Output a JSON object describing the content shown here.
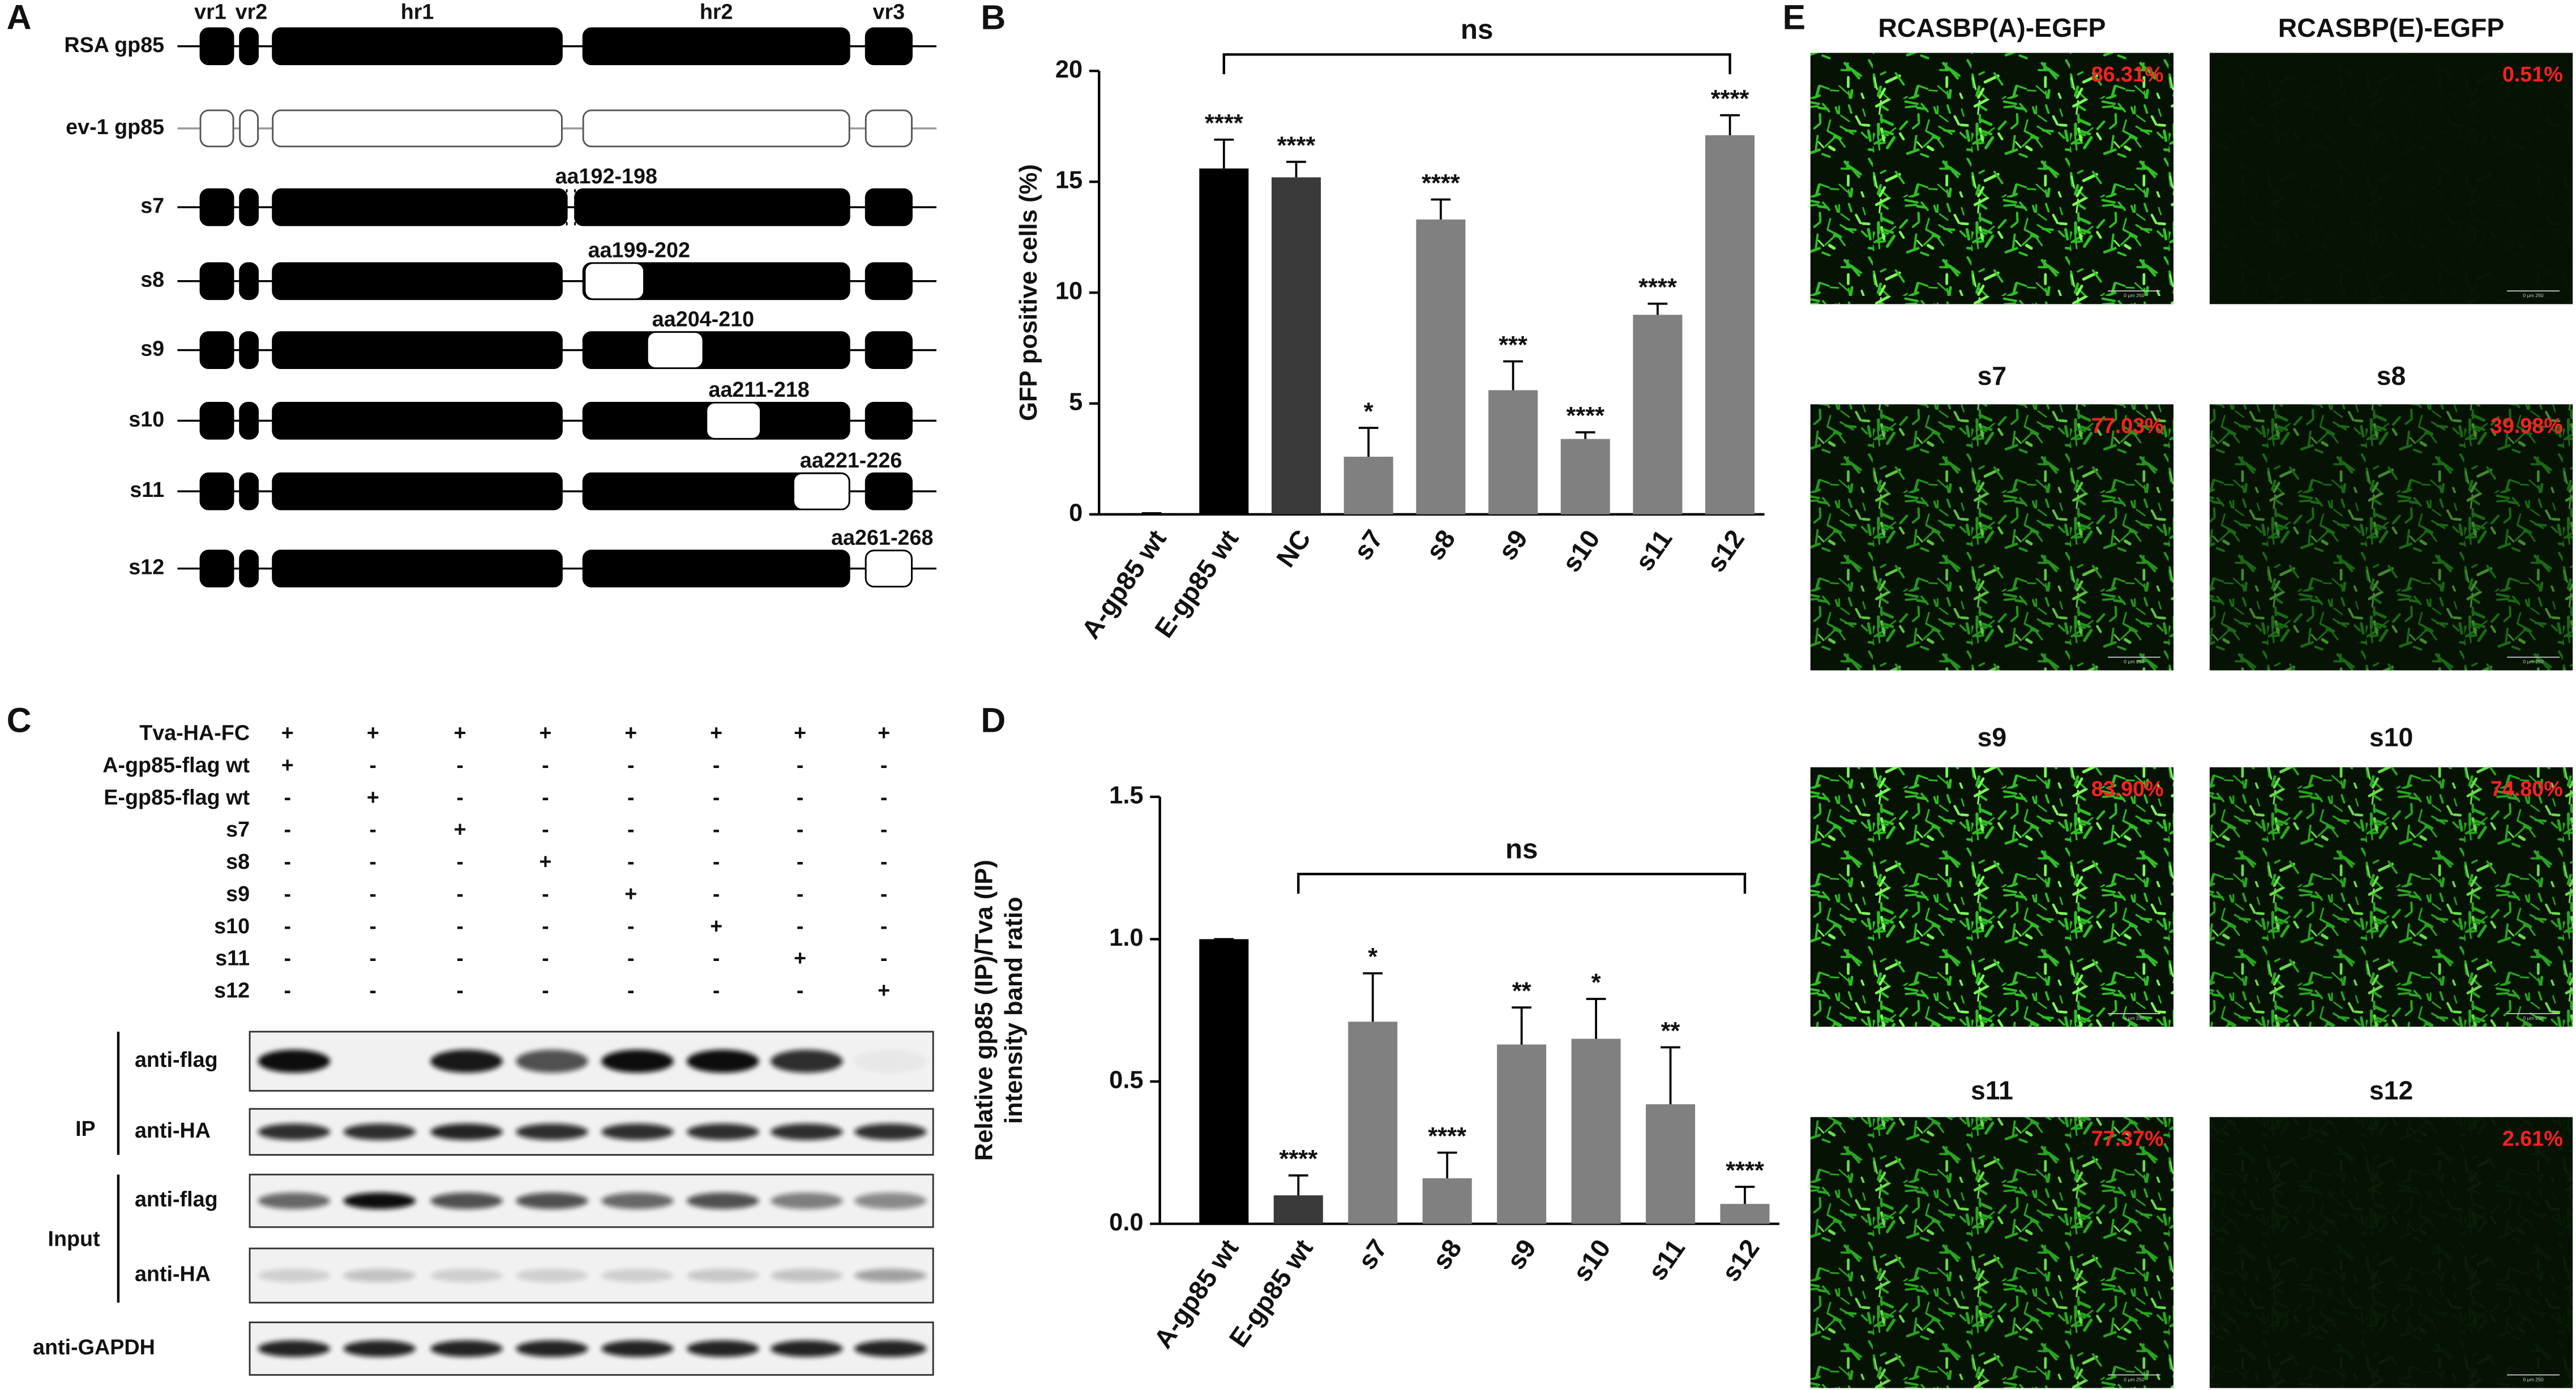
{
  "panel_labels": [
    "A",
    "B",
    "C",
    "D",
    "E"
  ],
  "diagram": {
    "domains": [
      "vr1",
      "vr2",
      "hr1",
      "hr2",
      "vr3"
    ],
    "rows": [
      {
        "label": "RSA gp85"
      },
      {
        "label": "ev-1 gp85"
      },
      {
        "label": "s7",
        "region": "aa192-198"
      },
      {
        "label": "s8",
        "region": "aa199-202"
      },
      {
        "label": "s9",
        "region": "aa204-210"
      },
      {
        "label": "s10",
        "region": "aa211-218"
      },
      {
        "label": "s11",
        "region": "aa221-226"
      },
      {
        "label": "s12",
        "region": "aa261-268"
      }
    ]
  },
  "blot": {
    "conditions": [
      "Tva-HA-FC",
      "A-gp85-flag wt",
      "E-gp85-flag wt",
      "s7",
      "s8",
      "s9",
      "s10",
      "s11",
      "s12"
    ],
    "signs": [
      [
        "+",
        "+",
        "+",
        "+",
        "+",
        "+",
        "+",
        "+"
      ],
      [
        "+",
        "-",
        "-",
        "-",
        "-",
        "-",
        "-",
        "-"
      ],
      [
        "-",
        "+",
        "-",
        "-",
        "-",
        "-",
        "-",
        "-"
      ],
      [
        "-",
        "-",
        "+",
        "-",
        "-",
        "-",
        "-",
        "-"
      ],
      [
        "-",
        "-",
        "-",
        "+",
        "-",
        "-",
        "-",
        "-"
      ],
      [
        "-",
        "-",
        "-",
        "-",
        "+",
        "-",
        "-",
        "-"
      ],
      [
        "-",
        "-",
        "-",
        "-",
        "-",
        "+",
        "-",
        "-"
      ],
      [
        "-",
        "-",
        "-",
        "-",
        "-",
        "-",
        "+",
        "-"
      ],
      [
        "-",
        "-",
        "-",
        "-",
        "-",
        "-",
        "-",
        "+"
      ]
    ],
    "groups": [
      "IP",
      "Input"
    ],
    "blots": [
      "anti-flag",
      "anti-HA",
      "anti-flag",
      "anti-HA",
      "anti-GAPDH"
    ]
  },
  "chart_data": [
    {
      "type": "bar",
      "ylabel": [
        "GFP positive cells (%)"
      ],
      "categories": [
        "A-gp85 wt",
        "E-gp85 wt",
        "NC",
        "s7",
        "s8",
        "s9",
        "s10",
        "s11",
        "s12"
      ],
      "values": [
        0.05,
        15.6,
        15.2,
        2.6,
        13.3,
        5.6,
        3.4,
        9.0,
        17.1
      ],
      "errors": [
        0,
        1.3,
        0.7,
        1.3,
        0.9,
        1.3,
        0.3,
        0.5,
        0.9
      ],
      "annotations": [
        null,
        "****",
        "****",
        "*",
        "****",
        "***",
        "****",
        "****",
        "****"
      ],
      "colors": [
        "#000000",
        "#000000",
        "#3a3a3a",
        "#808080",
        "#808080",
        "#808080",
        "#808080",
        "#808080",
        "#808080"
      ],
      "bracket": {
        "label": "ns",
        "from": "E-gp85 wt",
        "to": "s12"
      },
      "ylim": [
        0,
        20
      ],
      "yticks": [
        0,
        5,
        10,
        15,
        20
      ]
    },
    {
      "type": "bar",
      "ylabel": [
        "Relative gp85 (IP)/Tva (IP)",
        "intensity band ratio"
      ],
      "categories": [
        "A-gp85 wt",
        "E-gp85 wt",
        "s7",
        "s8",
        "s9",
        "s10",
        "s11",
        "s12"
      ],
      "values": [
        1.0,
        0.1,
        0.71,
        0.16,
        0.63,
        0.65,
        0.42,
        0.07
      ],
      "errors": [
        0,
        0.07,
        0.17,
        0.09,
        0.13,
        0.14,
        0.2,
        0.06
      ],
      "annotations": [
        null,
        "****",
        "*",
        "****",
        "**",
        "*",
        "**",
        "****"
      ],
      "colors": [
        "#000000",
        "#3a3a3a",
        "#808080",
        "#808080",
        "#808080",
        "#808080",
        "#808080",
        "#808080"
      ],
      "bracket": {
        "label": "ns",
        "from": "E-gp85 wt",
        "to": "s12"
      },
      "ylim": [
        0,
        1.5
      ],
      "yticks": [
        {
          "value": 0,
          "label": "0.0"
        },
        0.5,
        {
          "value": 1,
          "label": "1.0"
        },
        1.5
      ]
    }
  ],
  "images": {
    "scale_label": "0   μm   250",
    "panels": [
      {
        "title": "RCASBP(A)-EGFP",
        "percent": "86.31%"
      },
      {
        "title": "RCASBP(E)-EGFP",
        "percent": "0.51%"
      },
      {
        "title": "s7",
        "percent": "77.03%"
      },
      {
        "title": "s8",
        "percent": "39.98%"
      },
      {
        "title": "s9",
        "percent": "83.90%"
      },
      {
        "title": "s10",
        "percent": "74.80%"
      },
      {
        "title": "s11",
        "percent": "77.37%"
      },
      {
        "title": "s12",
        "percent": "2.61%"
      }
    ]
  }
}
